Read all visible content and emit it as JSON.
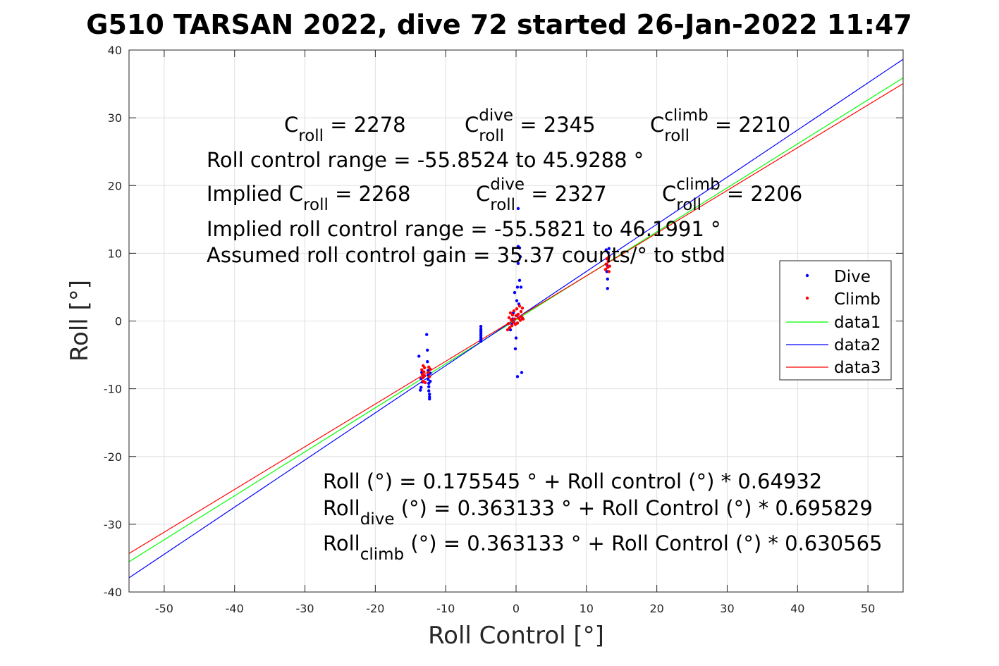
{
  "chart_data": {
    "type": "scatter",
    "title": "G510 TARSAN 2022, dive 72 started 26-Jan-2022 11:47",
    "xlabel": "Roll Control [°]",
    "ylabel": "Roll [°]",
    "xlim": [
      -55,
      55
    ],
    "ylim": [
      -40,
      40
    ],
    "xticks": [
      -50,
      -40,
      -30,
      -20,
      -10,
      0,
      10,
      20,
      30,
      40,
      50
    ],
    "yticks": [
      -40,
      -30,
      -20,
      -10,
      0,
      10,
      20,
      30,
      40
    ],
    "xtick_labels": [
      "-50",
      "-40",
      "-30",
      "-20",
      "-10",
      "0",
      "10",
      "20",
      "30",
      "40",
      "50"
    ],
    "ytick_labels": [
      "-40",
      "-30",
      "-20",
      "-10",
      "0",
      "10",
      "20",
      "30",
      "40"
    ],
    "grid": true,
    "legend_position": "right",
    "series": [
      {
        "name": "Dive",
        "kind": "points",
        "color": "#0000ff",
        "x": [
          -13.8,
          -13.6,
          -13.5,
          -13.5,
          -13.4,
          -13.3,
          -13.2,
          -12.7,
          -12.6,
          -12.6,
          -12.5,
          -12.5,
          -12.5,
          -12.4,
          -12.4,
          -12.4,
          -12.3,
          -12.3,
          -12.3,
          -12.2,
          -12.2,
          -5.0,
          -5.0,
          -5.0,
          -5.0,
          -5.0,
          -5.0,
          -5.0,
          -5.0,
          -0.8,
          -0.6,
          -0.5,
          -0.4,
          -0.3,
          -0.2,
          -0.1,
          0.0,
          0.1,
          0.1,
          0.2,
          0.2,
          0.3,
          0.3,
          0.3,
          0.4,
          0.5,
          0.5,
          0.6,
          0.7,
          0.8,
          0.9,
          12.8,
          12.9,
          12.9,
          13.0,
          13.0,
          13.1,
          13.1,
          13.2
        ],
        "y": [
          -5.2,
          -10.2,
          -8.5,
          -9.8,
          -7.6,
          -9.0,
          -8.3,
          -2.0,
          -4.3,
          -6.0,
          -7.3,
          -8.0,
          -8.6,
          -9.2,
          -9.7,
          -10.3,
          -10.8,
          -11.2,
          -11.5,
          -7.7,
          -8.9,
          -0.8,
          -1.2,
          -1.5,
          -1.8,
          -2.1,
          -2.4,
          -2.7,
          -3.0,
          -1.3,
          -0.5,
          0.3,
          1.2,
          -0.2,
          4.2,
          -4.1,
          -2.5,
          3.0,
          0.8,
          5.0,
          -8.2,
          16.6,
          11.0,
          8.5,
          2.5,
          6.0,
          10.8,
          9.5,
          5.0,
          -7.6,
          0.4,
          10.5,
          8.3,
          7.3,
          6.2,
          4.8,
          10.1,
          9.2,
          10.7
        ]
      },
      {
        "name": "Climb",
        "kind": "points",
        "color": "#ff0000",
        "x": [
          -13.4,
          -13.3,
          -13.3,
          -13.2,
          -13.2,
          -13.1,
          -13.0,
          -13.0,
          -12.9,
          -12.5,
          -12.4,
          -12.3,
          -12.2,
          -1.2,
          -1.1,
          -1.0,
          -0.9,
          -0.8,
          -0.7,
          -0.6,
          -0.5,
          -0.4,
          -0.3,
          -0.2,
          -0.1,
          0.0,
          0.1,
          0.2,
          0.3,
          0.4,
          0.5,
          0.6,
          0.7,
          0.8,
          0.9,
          1.0,
          12.7,
          12.8,
          12.9,
          13.0,
          13.1,
          13.2,
          13.2,
          13.3
        ],
        "y": [
          -7.2,
          -7.9,
          -8.4,
          -6.6,
          -8.9,
          -7.5,
          -8.1,
          -6.9,
          -9.1,
          -7.6,
          -6.8,
          -8.2,
          -7.1,
          -1.3,
          -0.4,
          0.5,
          -1.0,
          1.2,
          0.2,
          -0.7,
          0.9,
          -0.2,
          1.5,
          0.3,
          -0.5,
          0.8,
          1.8,
          -0.3,
          1.0,
          0.4,
          2.2,
          0.1,
          1.4,
          0.6,
          1.9,
          0.3,
          7.6,
          8.4,
          9.2,
          7.9,
          8.8,
          9.5,
          7.3,
          8.1
        ]
      },
      {
        "name": "data1",
        "kind": "line",
        "color": "#00ff00",
        "x": [
          -55,
          55
        ],
        "y": [
          -35.537,
          35.888
        ]
      },
      {
        "name": "data2",
        "kind": "line",
        "color": "#0000ff",
        "x": [
          -55,
          55
        ],
        "y": [
          -37.907,
          38.634
        ]
      },
      {
        "name": "data3",
        "kind": "line",
        "color": "#ff0000",
        "x": [
          -55,
          55
        ],
        "y": [
          -34.318,
          35.044
        ]
      }
    ],
    "annotations": [
      {
        "id": "croll",
        "parts": [
          {
            "t": "C"
          },
          {
            "t": "roll",
            "s": "sub"
          },
          {
            "t": " = 2278"
          }
        ]
      },
      {
        "id": "croll-dive",
        "parts": [
          {
            "t": "C"
          },
          {
            "t": "dive",
            "s": "sup"
          },
          {
            "t": "roll",
            "s": "sub"
          },
          {
            "t": " = 2345"
          }
        ]
      },
      {
        "id": "croll-climb",
        "parts": [
          {
            "t": "C"
          },
          {
            "t": "climb",
            "s": "sup"
          },
          {
            "t": "roll",
            "s": "sub"
          },
          {
            "t": " = 2210"
          }
        ]
      },
      {
        "id": "range",
        "parts": [
          {
            "t": "Roll control range = -55.8524 to 45.9288 °"
          }
        ]
      },
      {
        "id": "implied-croll",
        "parts": [
          {
            "t": "Implied C"
          },
          {
            "t": "roll",
            "s": "sub"
          },
          {
            "t": " = 2268"
          }
        ]
      },
      {
        "id": "implied-croll-dive",
        "parts": [
          {
            "t": "C"
          },
          {
            "t": "dive",
            "s": "sup"
          },
          {
            "t": "roll",
            "s": "sub"
          },
          {
            "t": " = 2327"
          }
        ]
      },
      {
        "id": "implied-croll-climb",
        "parts": [
          {
            "t": "C"
          },
          {
            "t": "climb",
            "s": "sup"
          },
          {
            "t": "roll",
            "s": "sub"
          },
          {
            "t": " = 2206"
          }
        ]
      },
      {
        "id": "implied-range",
        "parts": [
          {
            "t": "Implied roll control range = -55.5821 to 46.1991 °"
          }
        ]
      },
      {
        "id": "gain",
        "parts": [
          {
            "t": "Assumed roll control gain = 35.37 counts/° to stbd"
          }
        ]
      },
      {
        "id": "fit",
        "parts": [
          {
            "t": "Roll (°) = 0.175545 ° + Roll control (°) * 0.64932"
          }
        ]
      },
      {
        "id": "fit-dive",
        "parts": [
          {
            "t": "Roll"
          },
          {
            "t": "dive",
            "s": "sub"
          },
          {
            "t": " (°) = 0.363133 ° + Roll Control (°) * 0.695829"
          }
        ]
      },
      {
        "id": "fit-climb",
        "parts": [
          {
            "t": "Roll"
          },
          {
            "t": "climb",
            "s": "sub"
          },
          {
            "t": " (°) = 0.363133 ° + Roll Control (°) * 0.630565"
          }
        ]
      }
    ]
  }
}
